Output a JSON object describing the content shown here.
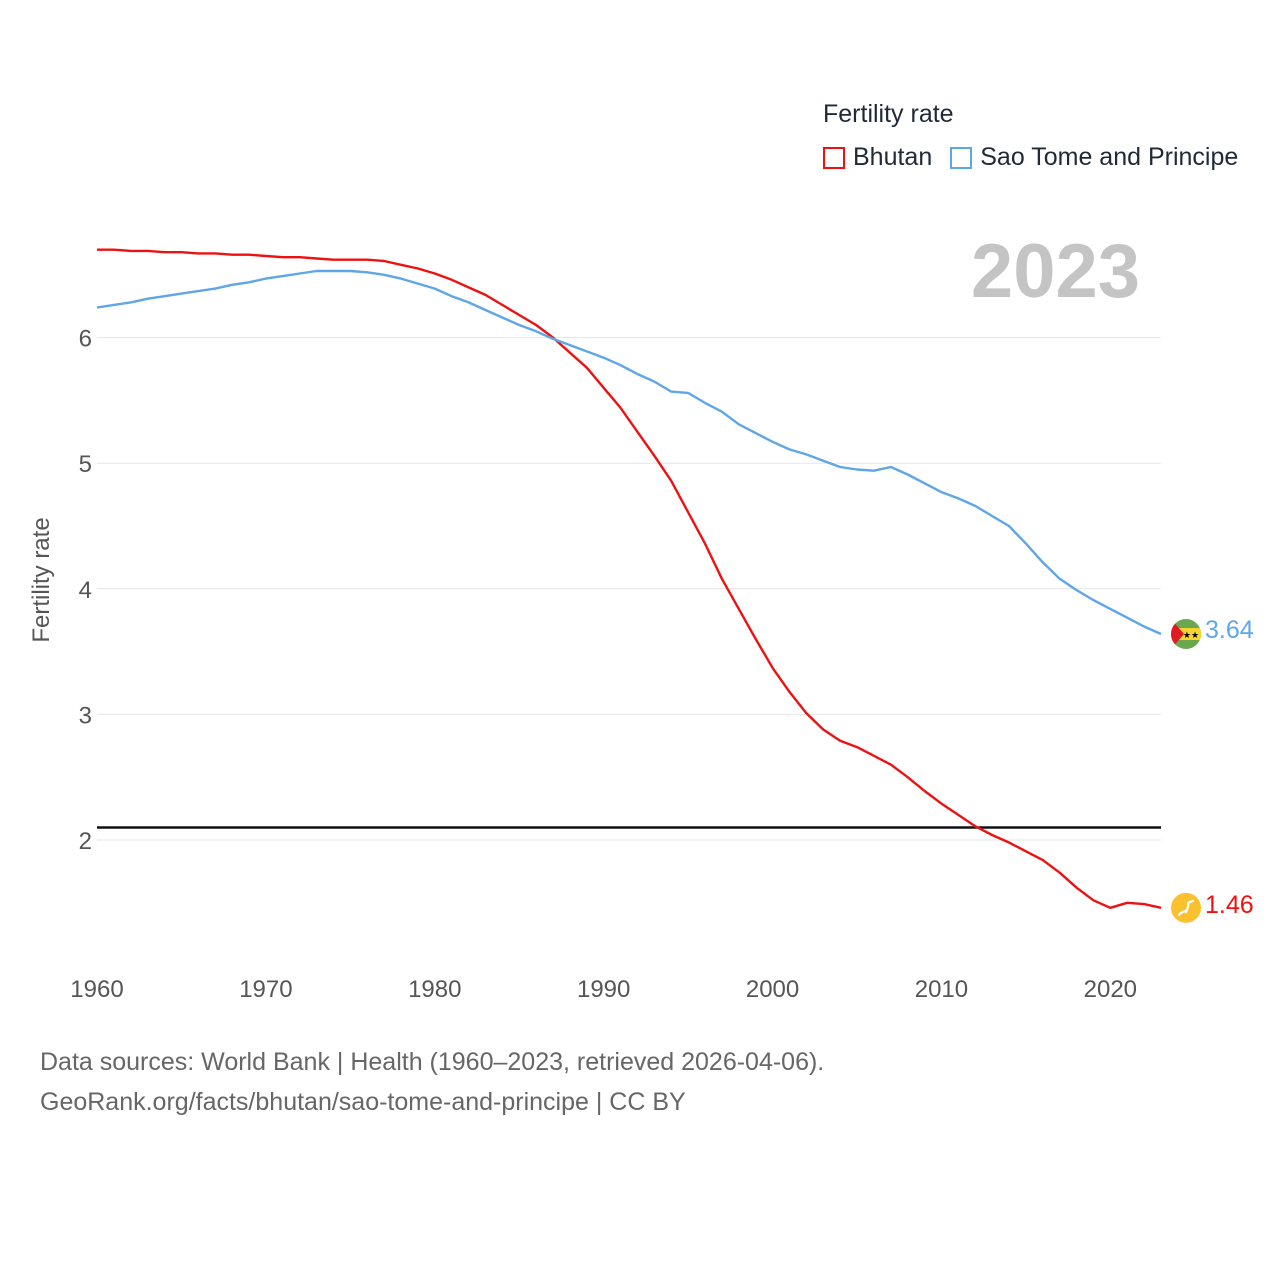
{
  "legend": {
    "title": "Fertility rate",
    "items": [
      "Bhutan",
      "Sao Tome and Principe"
    ]
  },
  "year_label": "2023",
  "footer": {
    "line1": "Data sources: World Bank | Health (1960–2023, retrieved 2026-04-06).",
    "line2": "GeoRank.org/facts/bhutan/sao-tome-and-principe | CC BY"
  },
  "end_labels": {
    "bhutan": "1.46",
    "stp": "3.64"
  },
  "colors": {
    "bhutan": "#ee1111",
    "stp": "#5fa6e8",
    "reference": "#111111",
    "grid": "#e6e6e6",
    "axis_text": "#555555"
  },
  "chart_data": {
    "type": "line",
    "title": "Fertility rate",
    "xlabel": "",
    "ylabel": "Fertility rate",
    "xlim": [
      1960,
      2023
    ],
    "ylim": [
      1,
      7
    ],
    "x_ticks": [
      1960,
      1970,
      1980,
      1990,
      2000,
      2010,
      2020
    ],
    "y_ticks": [
      2,
      3,
      4,
      5,
      6
    ],
    "reference_line": 2.1,
    "x": [
      1960,
      1961,
      1962,
      1963,
      1964,
      1965,
      1966,
      1967,
      1968,
      1969,
      1970,
      1971,
      1972,
      1973,
      1974,
      1975,
      1976,
      1977,
      1978,
      1979,
      1980,
      1981,
      1982,
      1983,
      1984,
      1985,
      1986,
      1987,
      1988,
      1989,
      1990,
      1991,
      1992,
      1993,
      1994,
      1995,
      1996,
      1997,
      1998,
      1999,
      2000,
      2001,
      2002,
      2003,
      2004,
      2005,
      2006,
      2007,
      2008,
      2009,
      2010,
      2011,
      2012,
      2013,
      2014,
      2015,
      2016,
      2017,
      2018,
      2019,
      2020,
      2021,
      2022,
      2023
    ],
    "series": [
      {
        "name": "Bhutan",
        "color": "#ee1111",
        "values": [
          6.7,
          6.7,
          6.69,
          6.69,
          6.68,
          6.68,
          6.67,
          6.67,
          6.66,
          6.66,
          6.65,
          6.64,
          6.64,
          6.63,
          6.62,
          6.62,
          6.62,
          6.61,
          6.58,
          6.55,
          6.51,
          6.46,
          6.4,
          6.34,
          6.26,
          6.18,
          6.1,
          6.0,
          5.88,
          5.76,
          5.6,
          5.44,
          5.25,
          5.06,
          4.86,
          4.61,
          4.36,
          4.08,
          3.84,
          3.6,
          3.37,
          3.18,
          3.01,
          2.88,
          2.79,
          2.74,
          2.67,
          2.6,
          2.5,
          2.39,
          2.29,
          2.2,
          2.11,
          2.04,
          1.98,
          1.91,
          1.84,
          1.74,
          1.62,
          1.52,
          1.46,
          1.5,
          1.49,
          1.46
        ]
      },
      {
        "name": "Sao Tome and Principe",
        "color": "#5fa6e8",
        "values": [
          6.24,
          6.26,
          6.28,
          6.31,
          6.33,
          6.35,
          6.37,
          6.39,
          6.42,
          6.44,
          6.47,
          6.49,
          6.51,
          6.53,
          6.53,
          6.53,
          6.52,
          6.5,
          6.47,
          6.43,
          6.39,
          6.33,
          6.28,
          6.22,
          6.16,
          6.1,
          6.05,
          5.99,
          5.94,
          5.89,
          5.84,
          5.78,
          5.71,
          5.65,
          5.57,
          5.56,
          5.48,
          5.41,
          5.31,
          5.24,
          5.17,
          5.11,
          5.07,
          5.02,
          4.97,
          4.95,
          4.94,
          4.97,
          4.91,
          4.84,
          4.77,
          4.72,
          4.66,
          4.58,
          4.5,
          4.36,
          4.21,
          4.08,
          3.99,
          3.91,
          3.84,
          3.77,
          3.7,
          3.64
        ]
      }
    ]
  }
}
